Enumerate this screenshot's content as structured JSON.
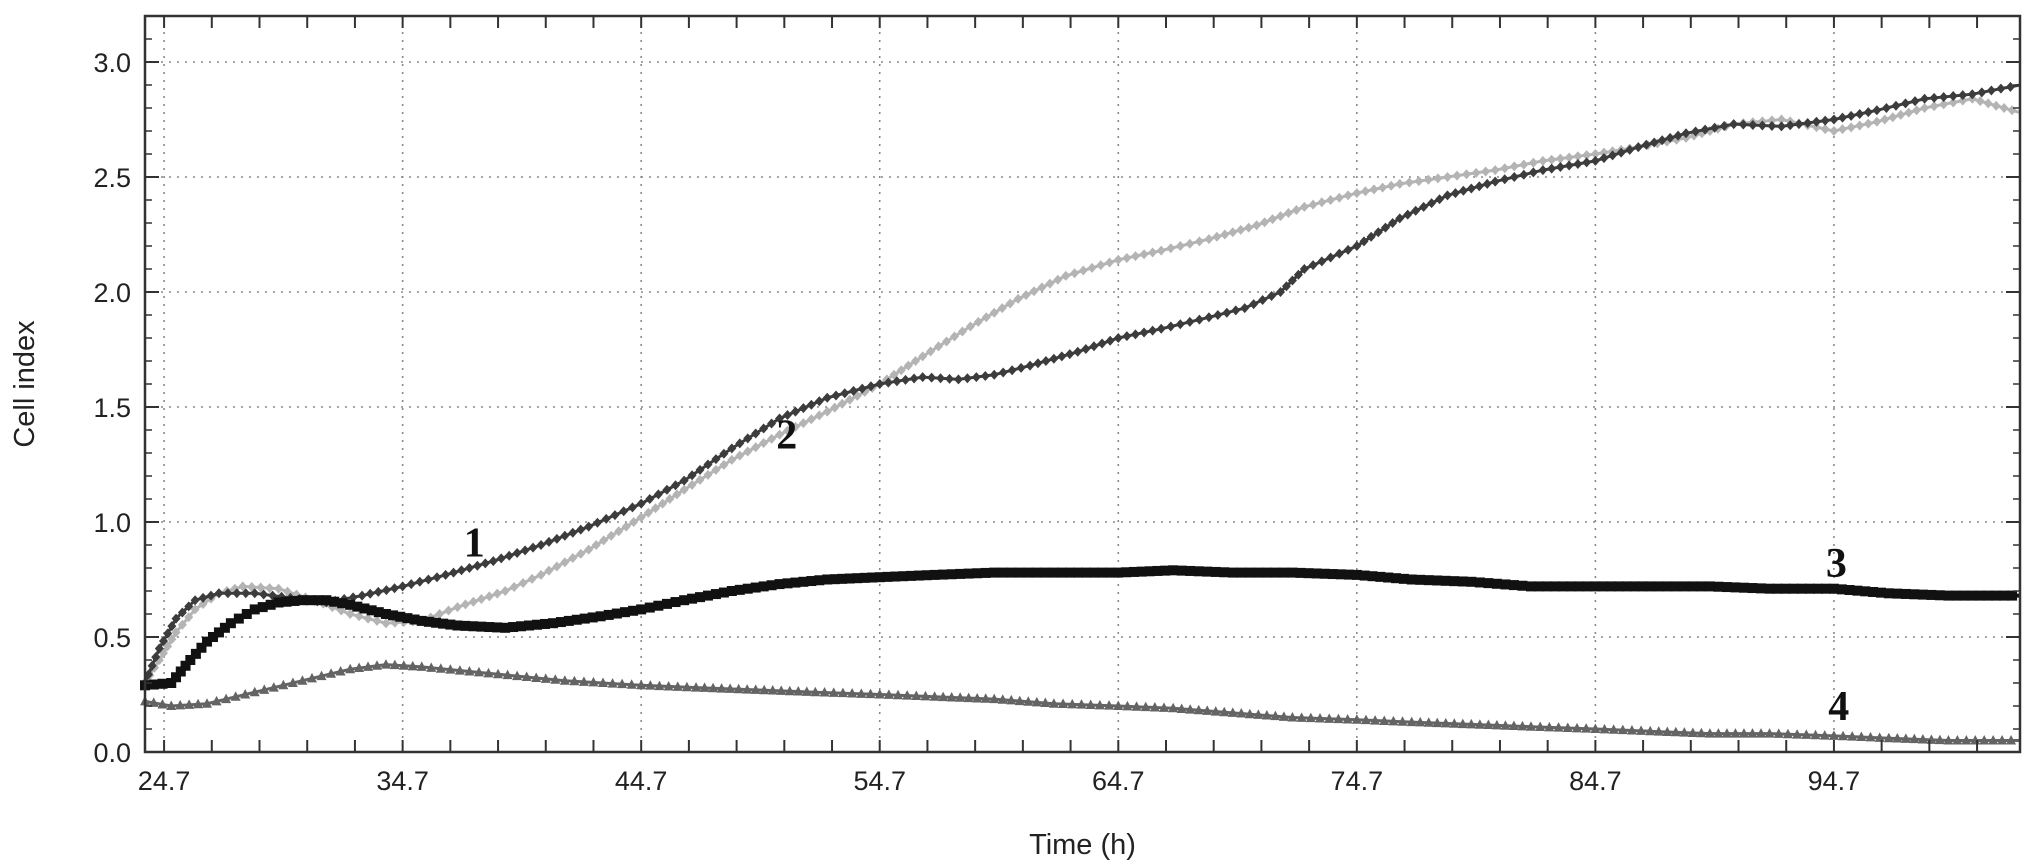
{
  "chart_data": {
    "type": "line",
    "title": "",
    "xlabel": "Time (h)",
    "ylabel": "Cell index",
    "xlim": [
      23.9,
      102.5
    ],
    "ylim": [
      0,
      3.2
    ],
    "xticks": [
      24.7,
      34.7,
      44.7,
      54.7,
      64.7,
      74.7,
      84.7,
      94.7
    ],
    "xtick_labels": [
      "24.7",
      "34.7",
      "44.7",
      "54.7",
      "64.7",
      "74.7",
      "84.7",
      "94.7"
    ],
    "yticks": [
      0,
      0.5,
      1.0,
      1.5,
      2.0,
      2.5,
      3.0
    ],
    "ytick_labels": [
      "0.0",
      "0.5",
      "1.0",
      "1.5",
      "2.0",
      "2.5",
      "3.0"
    ],
    "grid": true,
    "legend": "none",
    "series": [
      {
        "name": "1",
        "color": "#3c3c3c",
        "marker": "diamond",
        "label_at": [
          37.7,
          0.85
        ],
        "points": [
          [
            23.9,
            0.3
          ],
          [
            24.5,
            0.45
          ],
          [
            25.2,
            0.58
          ],
          [
            26,
            0.66
          ],
          [
            27,
            0.69
          ],
          [
            28.5,
            0.69
          ],
          [
            30,
            0.67
          ],
          [
            31.5,
            0.65
          ],
          [
            33,
            0.68
          ],
          [
            34.7,
            0.72
          ],
          [
            36.5,
            0.77
          ],
          [
            38.5,
            0.83
          ],
          [
            40.5,
            0.9
          ],
          [
            42.5,
            0.98
          ],
          [
            44.7,
            1.08
          ],
          [
            46.5,
            1.18
          ],
          [
            48.5,
            1.32
          ],
          [
            50.5,
            1.45
          ],
          [
            52.5,
            1.54
          ],
          [
            54.7,
            1.6
          ],
          [
            56.5,
            1.63
          ],
          [
            58,
            1.62
          ],
          [
            59.5,
            1.64
          ],
          [
            61,
            1.68
          ],
          [
            63,
            1.74
          ],
          [
            64.7,
            1.8
          ],
          [
            66.5,
            1.84
          ],
          [
            68.5,
            1.89
          ],
          [
            70,
            1.93
          ],
          [
            71.5,
            2.0
          ],
          [
            72.5,
            2.1
          ],
          [
            74.7,
            2.2
          ],
          [
            76.5,
            2.32
          ],
          [
            78.5,
            2.42
          ],
          [
            80.5,
            2.48
          ],
          [
            82.5,
            2.53
          ],
          [
            84.7,
            2.57
          ],
          [
            86.5,
            2.63
          ],
          [
            88.5,
            2.69
          ],
          [
            90.5,
            2.73
          ],
          [
            92.5,
            2.72
          ],
          [
            94.7,
            2.75
          ],
          [
            96.5,
            2.79
          ],
          [
            98.5,
            2.84
          ],
          [
            100.5,
            2.86
          ],
          [
            102.5,
            2.9
          ]
        ]
      },
      {
        "name": "2",
        "color": "#b4b4b4",
        "marker": "diamond",
        "label_at": [
          50.8,
          1.32
        ],
        "points": [
          [
            23.9,
            0.3
          ],
          [
            24.5,
            0.4
          ],
          [
            25.2,
            0.52
          ],
          [
            26,
            0.62
          ],
          [
            27,
            0.69
          ],
          [
            28,
            0.72
          ],
          [
            29.5,
            0.71
          ],
          [
            31,
            0.66
          ],
          [
            32.5,
            0.6
          ],
          [
            34,
            0.56
          ],
          [
            35.5,
            0.57
          ],
          [
            37,
            0.63
          ],
          [
            39,
            0.7
          ],
          [
            40.5,
            0.77
          ],
          [
            42.5,
            0.88
          ],
          [
            44.7,
            1.02
          ],
          [
            46.5,
            1.14
          ],
          [
            48.5,
            1.27
          ],
          [
            50.5,
            1.38
          ],
          [
            52.5,
            1.48
          ],
          [
            54.7,
            1.6
          ],
          [
            56.5,
            1.72
          ],
          [
            58.5,
            1.85
          ],
          [
            60.5,
            1.97
          ],
          [
            62.5,
            2.07
          ],
          [
            64.7,
            2.14
          ],
          [
            66.5,
            2.18
          ],
          [
            68.5,
            2.23
          ],
          [
            70.5,
            2.29
          ],
          [
            72.5,
            2.37
          ],
          [
            74.7,
            2.43
          ],
          [
            76.5,
            2.47
          ],
          [
            78.5,
            2.5
          ],
          [
            80.5,
            2.53
          ],
          [
            82.5,
            2.57
          ],
          [
            84.7,
            2.6
          ],
          [
            86.5,
            2.63
          ],
          [
            88.5,
            2.67
          ],
          [
            90.5,
            2.73
          ],
          [
            92.5,
            2.75
          ],
          [
            94.7,
            2.7
          ],
          [
            96.5,
            2.74
          ],
          [
            98.5,
            2.8
          ],
          [
            100.5,
            2.84
          ],
          [
            102.5,
            2.78
          ]
        ]
      },
      {
        "name": "3",
        "color": "#111111",
        "marker": "square",
        "label_at": [
          94.8,
          0.76
        ],
        "points": [
          [
            23.9,
            0.29
          ],
          [
            25,
            0.3
          ],
          [
            25.8,
            0.4
          ],
          [
            26.5,
            0.48
          ],
          [
            27.5,
            0.56
          ],
          [
            28.5,
            0.62
          ],
          [
            29.5,
            0.65
          ],
          [
            30.5,
            0.66
          ],
          [
            31.5,
            0.66
          ],
          [
            32.5,
            0.64
          ],
          [
            34,
            0.6
          ],
          [
            35.5,
            0.57
          ],
          [
            37,
            0.55
          ],
          [
            39,
            0.54
          ],
          [
            41,
            0.56
          ],
          [
            43,
            0.59
          ],
          [
            44.7,
            0.62
          ],
          [
            46.5,
            0.66
          ],
          [
            48.5,
            0.7
          ],
          [
            50.5,
            0.73
          ],
          [
            52.5,
            0.75
          ],
          [
            54.7,
            0.76
          ],
          [
            57,
            0.77
          ],
          [
            59.5,
            0.78
          ],
          [
            62,
            0.78
          ],
          [
            64.7,
            0.78
          ],
          [
            67,
            0.79
          ],
          [
            69.5,
            0.78
          ],
          [
            72,
            0.78
          ],
          [
            74.7,
            0.77
          ],
          [
            77,
            0.75
          ],
          [
            79.5,
            0.74
          ],
          [
            82,
            0.72
          ],
          [
            84.7,
            0.72
          ],
          [
            87,
            0.72
          ],
          [
            89.5,
            0.72
          ],
          [
            92,
            0.71
          ],
          [
            94.7,
            0.71
          ],
          [
            97,
            0.69
          ],
          [
            99.5,
            0.68
          ],
          [
            102.5,
            0.68
          ]
        ]
      },
      {
        "name": "4",
        "color": "#646464",
        "marker": "triangle",
        "label_at": [
          94.9,
          0.14
        ],
        "points": [
          [
            23.9,
            0.22
          ],
          [
            25,
            0.2
          ],
          [
            26.5,
            0.21
          ],
          [
            28.5,
            0.26
          ],
          [
            30.5,
            0.31
          ],
          [
            32.5,
            0.36
          ],
          [
            34,
            0.38
          ],
          [
            35.5,
            0.37
          ],
          [
            37.5,
            0.35
          ],
          [
            39.5,
            0.33
          ],
          [
            41.5,
            0.31
          ],
          [
            44.7,
            0.29
          ],
          [
            47,
            0.28
          ],
          [
            49.5,
            0.27
          ],
          [
            52,
            0.26
          ],
          [
            54.7,
            0.25
          ],
          [
            57,
            0.24
          ],
          [
            59.5,
            0.23
          ],
          [
            62,
            0.21
          ],
          [
            64.7,
            0.2
          ],
          [
            67,
            0.19
          ],
          [
            69.5,
            0.17
          ],
          [
            72,
            0.15
          ],
          [
            74.7,
            0.14
          ],
          [
            77,
            0.13
          ],
          [
            79.5,
            0.12
          ],
          [
            82,
            0.11
          ],
          [
            84.7,
            0.1
          ],
          [
            87,
            0.09
          ],
          [
            89.5,
            0.08
          ],
          [
            92,
            0.08
          ],
          [
            94.7,
            0.07
          ],
          [
            97,
            0.06
          ],
          [
            99.5,
            0.05
          ],
          [
            102.5,
            0.05
          ]
        ]
      }
    ]
  }
}
